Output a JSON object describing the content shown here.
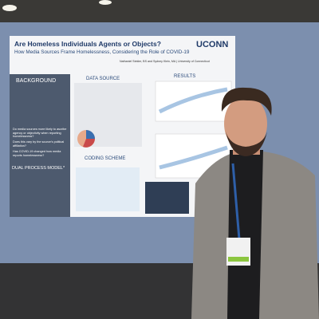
{
  "poster": {
    "title": "Are Homeless Individuals Agents or Objects?",
    "subtitle": "How Media Sources Frame Homelessness, Considering the Role of COVID-19",
    "authors": "Nathaniel Stekler, BS and Sydney Klein, MA | University of Connecticut",
    "logo": "UCONN",
    "sections": [
      "BACKGROUND",
      "DATA SOURCE",
      "RESULTS",
      "CODING SCHEME",
      "DUAL PROCESS MODEL*"
    ],
    "questions": [
      "Do media sources more likely to ascribe agency or objectivity when reporting homelessness?",
      "Does this vary by the source's political affiliation?",
      "Has COVID-19 changed how media reports homelessness?"
    ]
  }
}
